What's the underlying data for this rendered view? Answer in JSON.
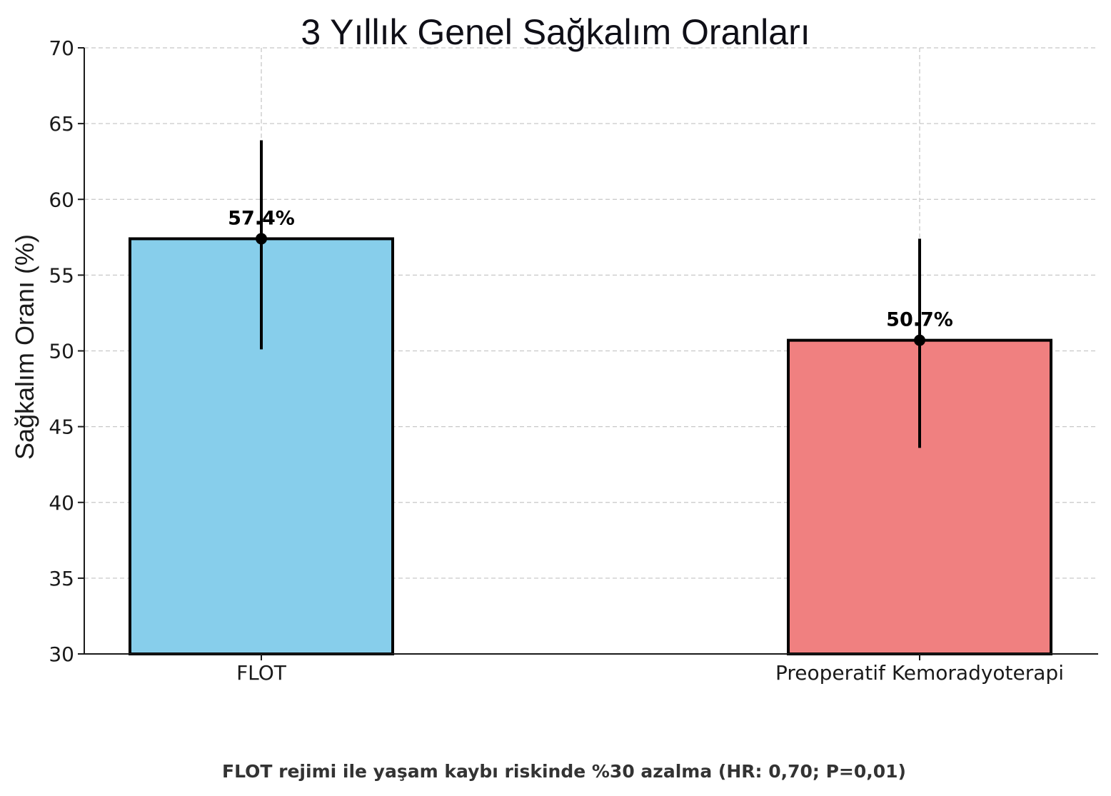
{
  "chart_data": {
    "type": "bar",
    "title": "3 Yıllık Genel Sağkalım Oranları",
    "xlabel": "",
    "ylabel": "Sağkalım Oranı (%)",
    "ylim": [
      30,
      70
    ],
    "yticks": [
      30,
      35,
      40,
      45,
      50,
      55,
      60,
      65,
      70
    ],
    "grid": true,
    "categories": [
      "FLOT",
      "Preoperatif Kemoradyoterapi"
    ],
    "values": [
      57.4,
      50.7
    ],
    "value_labels": [
      "57.4%",
      "50.7%"
    ],
    "error_bars": [
      {
        "low": 50.1,
        "high": 63.9
      },
      {
        "low": 43.6,
        "high": 57.4
      }
    ],
    "colors": [
      "#87ceeb",
      "#f08080"
    ],
    "annotation": "FLOT rejimi ile yaşam kaybı riskinde %30 azalma (HR: 0,70; P=0,01)"
  }
}
